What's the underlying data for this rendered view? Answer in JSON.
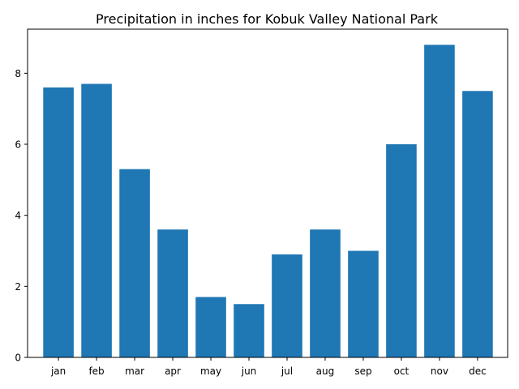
{
  "chart_data": {
    "type": "bar",
    "title": "Precipitation in inches for Kobuk Valley National Park",
    "xlabel": "",
    "ylabel": "",
    "categories": [
      "jan",
      "feb",
      "mar",
      "apr",
      "may",
      "jun",
      "jul",
      "aug",
      "sep",
      "oct",
      "nov",
      "dec"
    ],
    "values": [
      7.6,
      7.7,
      5.3,
      3.6,
      1.7,
      1.5,
      2.9,
      3.6,
      3.0,
      6.0,
      8.8,
      7.5
    ],
    "ylim": [
      0,
      9.24
    ],
    "yticks": [
      0,
      2,
      4,
      6,
      8
    ],
    "grid": false,
    "bar_color": "#1f77b4"
  }
}
